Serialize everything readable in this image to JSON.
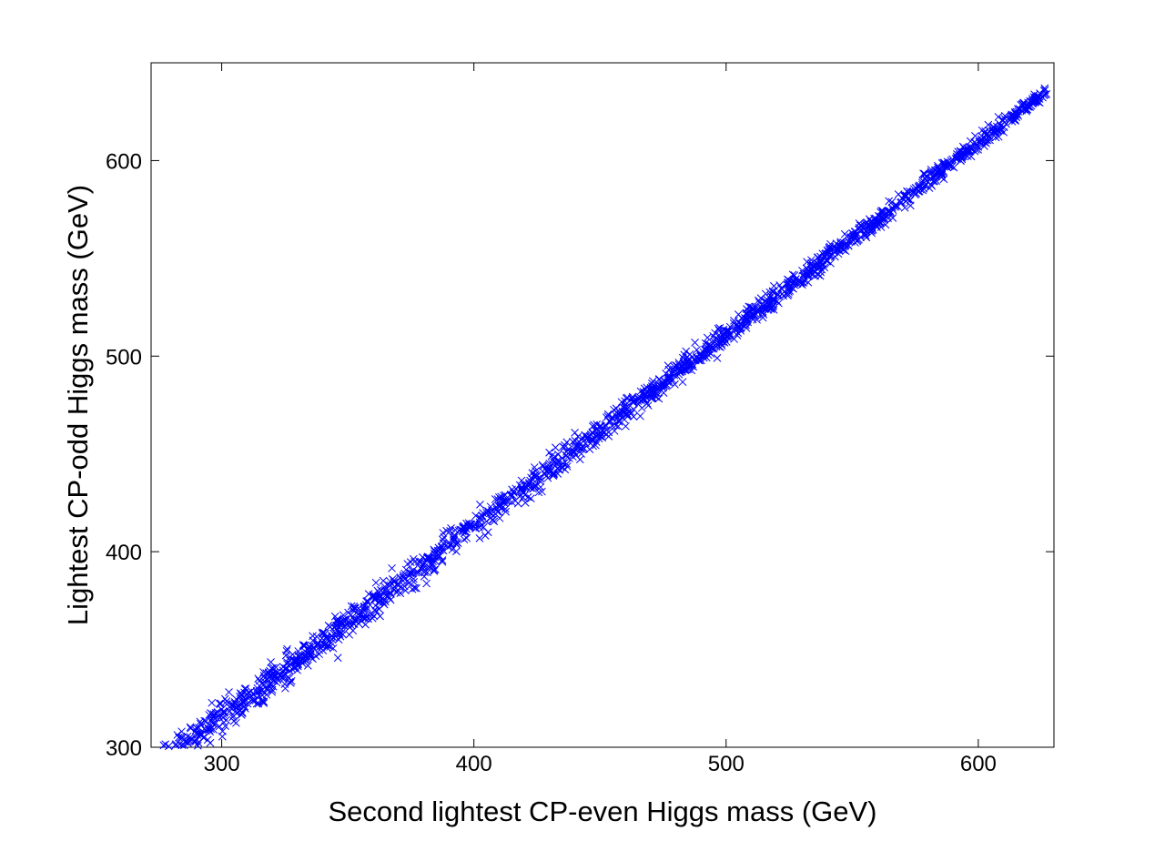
{
  "chart_data": {
    "type": "scatter",
    "title": "",
    "xlabel": "Second lightest CP-even Higgs mass (GeV)",
    "ylabel": "Lightest CP-odd Higgs mass (GeV)",
    "xlim": [
      272,
      630
    ],
    "ylim": [
      300,
      650
    ],
    "xticks": [
      300,
      400,
      500,
      600
    ],
    "yticks": [
      300,
      400,
      500,
      600
    ],
    "xtick_labels": [
      "300",
      "400",
      "500",
      "600"
    ],
    "ytick_labels": [
      "300",
      "400",
      "500",
      "600"
    ],
    "grid": false,
    "legend": "none",
    "marker": "x",
    "marker_color": "#0000ff",
    "series": [
      {
        "n_points": 1800,
        "x_range": [
          275,
          627
        ],
        "trend": {
          "slope": 0.982,
          "intercept": 20
        },
        "scatter_half_width_gev": [
          14,
          6
        ],
        "x": [
          277,
          283,
          290,
          296,
          302,
          309,
          315,
          320,
          327,
          333,
          340,
          346,
          353,
          360,
          366,
          372,
          379,
          386,
          392,
          399,
          405,
          412,
          419,
          425,
          431,
          438,
          445,
          452,
          458,
          465,
          471,
          478,
          485,
          491,
          498,
          505,
          511,
          518,
          525,
          531,
          538,
          545,
          551,
          558,
          565,
          572,
          579,
          586,
          593,
          600,
          607,
          614,
          621,
          627
        ],
        "y": [
          301,
          305,
          310,
          317,
          322,
          328,
          334,
          340,
          346,
          352,
          358,
          364,
          371,
          377,
          383,
          388,
          395,
          402,
          408,
          414,
          420,
          426,
          433,
          439,
          445,
          451,
          458,
          464,
          470,
          477,
          483,
          489,
          496,
          502,
          509,
          515,
          521,
          528,
          535,
          541,
          547,
          554,
          560,
          567,
          573,
          580,
          587,
          594,
          600,
          607,
          614,
          621,
          628,
          634
        ]
      }
    ]
  }
}
